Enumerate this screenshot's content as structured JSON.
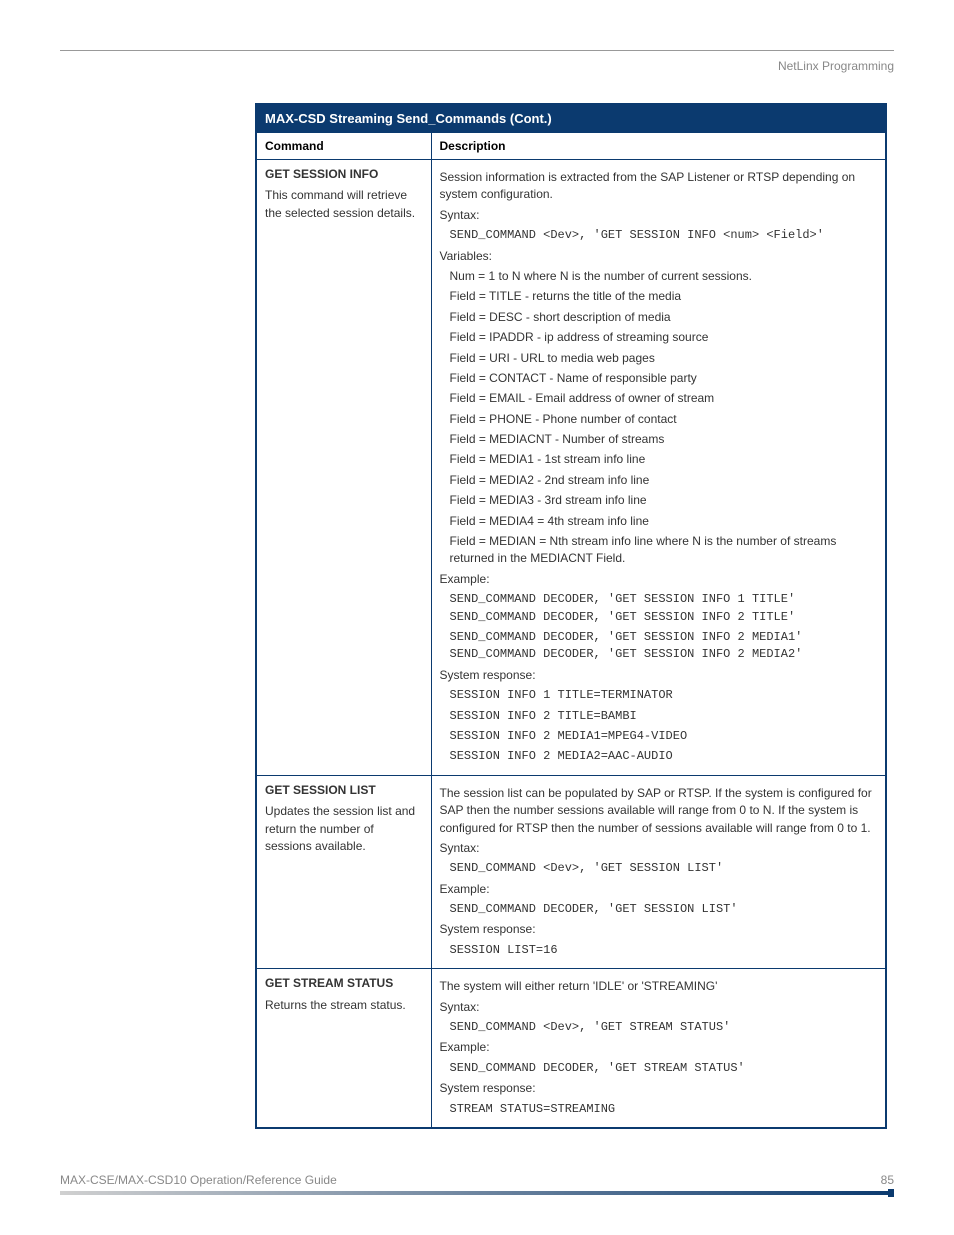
{
  "header": {
    "section": "NetLinx Programming"
  },
  "table": {
    "title": "MAX-CSD Streaming Send_Commands (Cont.)",
    "col1": "Command",
    "col2": "Description",
    "rows": [
      {
        "cmd_name": "GET SESSION INFO",
        "cmd_sub": "This command will retrieve the selected session details.",
        "desc": [
          {
            "t": "plain",
            "v": "Session information is extracted from the SAP Listener or RTSP depending on system configuration."
          },
          {
            "t": "plain",
            "v": "Syntax:"
          },
          {
            "t": "code",
            "v": "SEND_COMMAND <Dev>, 'GET SESSION INFO <num> <Field>'"
          },
          {
            "t": "plain",
            "v": "Variables:"
          },
          {
            "t": "indent",
            "v": "Num = 1 to N where N is the number of current sessions."
          },
          {
            "t": "indent",
            "v": "Field = TITLE - returns the title of the media"
          },
          {
            "t": "indent",
            "v": "Field = DESC - short description of media"
          },
          {
            "t": "indent",
            "v": "Field = IPADDR - ip address of streaming source"
          },
          {
            "t": "indent",
            "v": "Field = URI - URL to media web pages"
          },
          {
            "t": "indent",
            "v": "Field = CONTACT - Name of responsible party"
          },
          {
            "t": "indent",
            "v": "Field = EMAIL - Email address of owner of stream"
          },
          {
            "t": "indent",
            "v": "Field = PHONE - Phone number of contact"
          },
          {
            "t": "indent",
            "v": "Field = MEDIACNT - Number of streams"
          },
          {
            "t": "indent",
            "v": "Field = MEDIA1 - 1st stream info line"
          },
          {
            "t": "indent",
            "v": "Field = MEDIA2 - 2nd stream info line"
          },
          {
            "t": "indent",
            "v": "Field = MEDIA3 - 3rd stream info line"
          },
          {
            "t": "indent",
            "v": "Field = MEDIA4 = 4th stream info line"
          },
          {
            "t": "indent",
            "v": "Field = MEDIAN = Nth stream info line where N is the number of streams returned in the MEDIACNT Field."
          },
          {
            "t": "plain",
            "v": "Example:"
          },
          {
            "t": "code",
            "v": "SEND_COMMAND DECODER, 'GET SESSION INFO 1 TITLE'\nSEND_COMMAND DECODER, 'GET SESSION INFO 2 TITLE'"
          },
          {
            "t": "code",
            "v": "SEND_COMMAND DECODER, 'GET SESSION INFO 2 MEDIA1'\nSEND_COMMAND DECODER, 'GET SESSION INFO 2 MEDIA2'"
          },
          {
            "t": "plain",
            "v": "System response:"
          },
          {
            "t": "code",
            "v": "SESSION INFO 1 TITLE=TERMINATOR"
          },
          {
            "t": "code",
            "v": "SESSION INFO 2 TITLE=BAMBI"
          },
          {
            "t": "code",
            "v": "SESSION INFO 2 MEDIA1=MPEG4-VIDEO"
          },
          {
            "t": "code",
            "v": "SESSION INFO 2 MEDIA2=AAC-AUDIO"
          }
        ]
      },
      {
        "cmd_name": "GET SESSION LIST",
        "cmd_sub": "Updates the session list and return the number of sessions available.",
        "desc": [
          {
            "t": "plain",
            "v": "The session list can be populated by SAP or RTSP. If the system is configured for SAP then the number sessions available will range from 0 to N. If the system is configured for RTSP then the number of sessions available will range from 0 to 1."
          },
          {
            "t": "plain",
            "v": "Syntax:"
          },
          {
            "t": "code",
            "v": "SEND_COMMAND <Dev>, 'GET SESSION LIST'"
          },
          {
            "t": "plain",
            "v": "Example:"
          },
          {
            "t": "code",
            "v": "SEND_COMMAND DECODER, 'GET SESSION LIST'"
          },
          {
            "t": "plain",
            "v": "System response:"
          },
          {
            "t": "code",
            "v": "SESSION LIST=16"
          }
        ]
      },
      {
        "cmd_name": "GET STREAM STATUS",
        "cmd_sub": "Returns the stream status.",
        "desc": [
          {
            "t": "plain",
            "v": "The system will either return 'IDLE' or 'STREAMING'"
          },
          {
            "t": "plain",
            "v": "Syntax:"
          },
          {
            "t": "code",
            "v": "SEND_COMMAND <Dev>, 'GET STREAM STATUS'"
          },
          {
            "t": "plain",
            "v": "Example:"
          },
          {
            "t": "code",
            "v": "SEND_COMMAND DECODER, 'GET STREAM STATUS'"
          },
          {
            "t": "plain",
            "v": "System response:"
          },
          {
            "t": "code",
            "v": "STREAM STATUS=STREAMING"
          }
        ]
      }
    ]
  },
  "footer": {
    "guide": "MAX-CSE/MAX-CSD10 Operation/Reference Guide",
    "page": "85"
  },
  "colors": {
    "header_bg": "#0b3a6f",
    "header_text": "#ffffff",
    "border": "#0b3a6f",
    "muted": "#888888"
  }
}
